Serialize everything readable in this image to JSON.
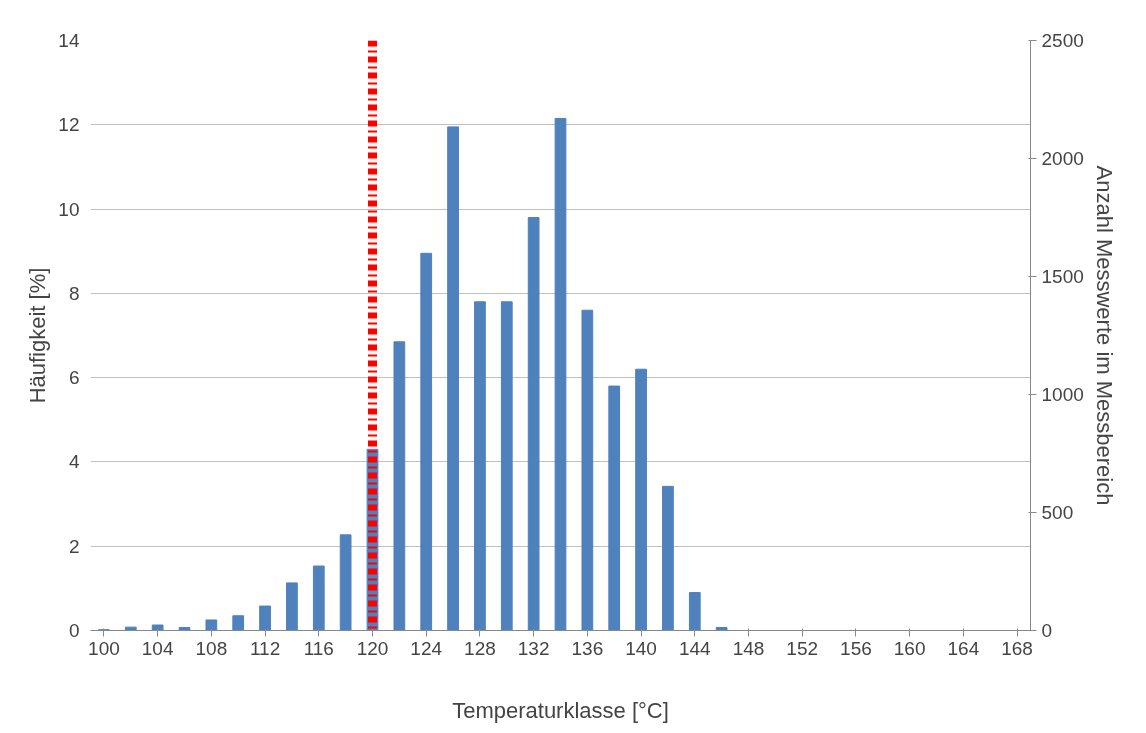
{
  "chart_data": {
    "type": "bar",
    "xlabel": "Temperaturklasse [°C]",
    "ylabel": "Häufigkeit [%]",
    "y2label": "Anzahl Messwerte im Messbereich",
    "x": [
      100,
      102,
      104,
      106,
      108,
      110,
      112,
      114,
      116,
      118,
      120,
      122,
      124,
      126,
      128,
      130,
      132,
      134,
      136,
      138,
      140,
      142,
      144,
      146,
      148,
      150,
      152,
      154,
      156,
      158,
      160,
      162,
      164,
      166,
      168
    ],
    "series": [
      {
        "color": "#4f81bd",
        "values": [
          0.02,
          0.08,
          0.13,
          0.07,
          0.25,
          0.35,
          0.58,
          1.13,
          1.53,
          2.27,
          4.3,
          6.85,
          8.95,
          11.95,
          7.8,
          7.8,
          9.8,
          12.15,
          7.6,
          5.8,
          6.2,
          3.42,
          0.9,
          0.07,
          0,
          0,
          0,
          0,
          0,
          0,
          0,
          0,
          0,
          0,
          0
        ]
      }
    ],
    "xlim": [
      99,
      169
    ],
    "xticks": [
      100,
      104,
      108,
      112,
      116,
      120,
      124,
      128,
      132,
      136,
      140,
      144,
      148,
      152,
      156,
      160,
      164,
      168
    ],
    "ylim": [
      0,
      14
    ],
    "yticks": [
      0,
      2,
      4,
      6,
      8,
      10,
      12,
      14
    ],
    "y2lim": [
      0,
      2500
    ],
    "y2ticks": [
      0,
      500,
      1000,
      1500,
      2000,
      2500
    ],
    "ref_lines": [
      {
        "axis": "x",
        "value": 120,
        "color": "#ff0000",
        "line_style": "dashdot"
      }
    ],
    "grid": "y"
  }
}
